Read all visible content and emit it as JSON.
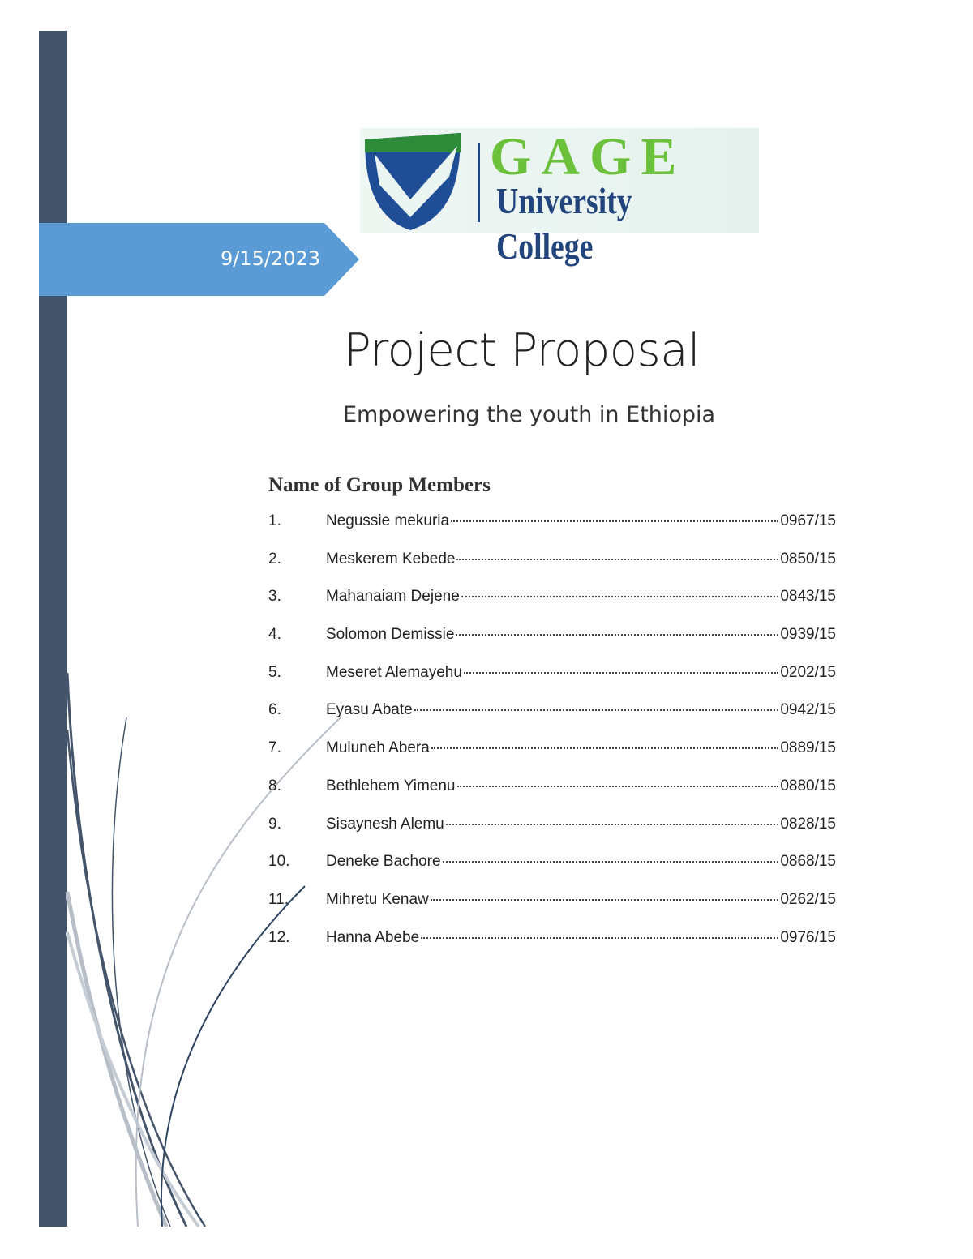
{
  "cover": {
    "date": "9/15/2023",
    "title": "Project Proposal",
    "subtitle": "Empowering the youth in Ethiopia"
  },
  "logo": {
    "line1": "GAGE",
    "line2": "University College"
  },
  "colors": {
    "sidebar": "#44546a",
    "date_banner": "#5b9bd5",
    "logo_green": "#6cc13a",
    "logo_navy": "#23457e"
  },
  "members": {
    "heading": "Name of Group Members",
    "items": [
      {
        "num": "1.",
        "name": "Negussie mekuria",
        "id": "0967/15"
      },
      {
        "num": "2.",
        "name": "Meskerem Kebede",
        "id": "0850/15"
      },
      {
        "num": "3.",
        "name": "Mahanaiam Dejene",
        "id": "0843/15"
      },
      {
        "num": "4.",
        "name": "Solomon Demissie",
        "id": "0939/15"
      },
      {
        "num": "5.",
        "name": "Meseret Alemayehu",
        "id": "0202/15"
      },
      {
        "num": "6.",
        "name": "Eyasu Abate",
        "id": "0942/15"
      },
      {
        "num": "7.",
        "name": "Muluneh Abera",
        "id": "0889/15"
      },
      {
        "num": "8.",
        "name": "Bethlehem Yimenu",
        "id": "0880/15"
      },
      {
        "num": "9.",
        "name": "Sisaynesh Alemu",
        "id": "0828/15"
      },
      {
        "num": "10.",
        "name": "Deneke Bachore",
        "id": "0868/15"
      },
      {
        "num": "11.",
        "name": "Mihretu Kenaw",
        "id": "0262/15"
      },
      {
        "num": "12.",
        "name": "Hanna Abebe",
        "id": "0976/15"
      }
    ]
  }
}
